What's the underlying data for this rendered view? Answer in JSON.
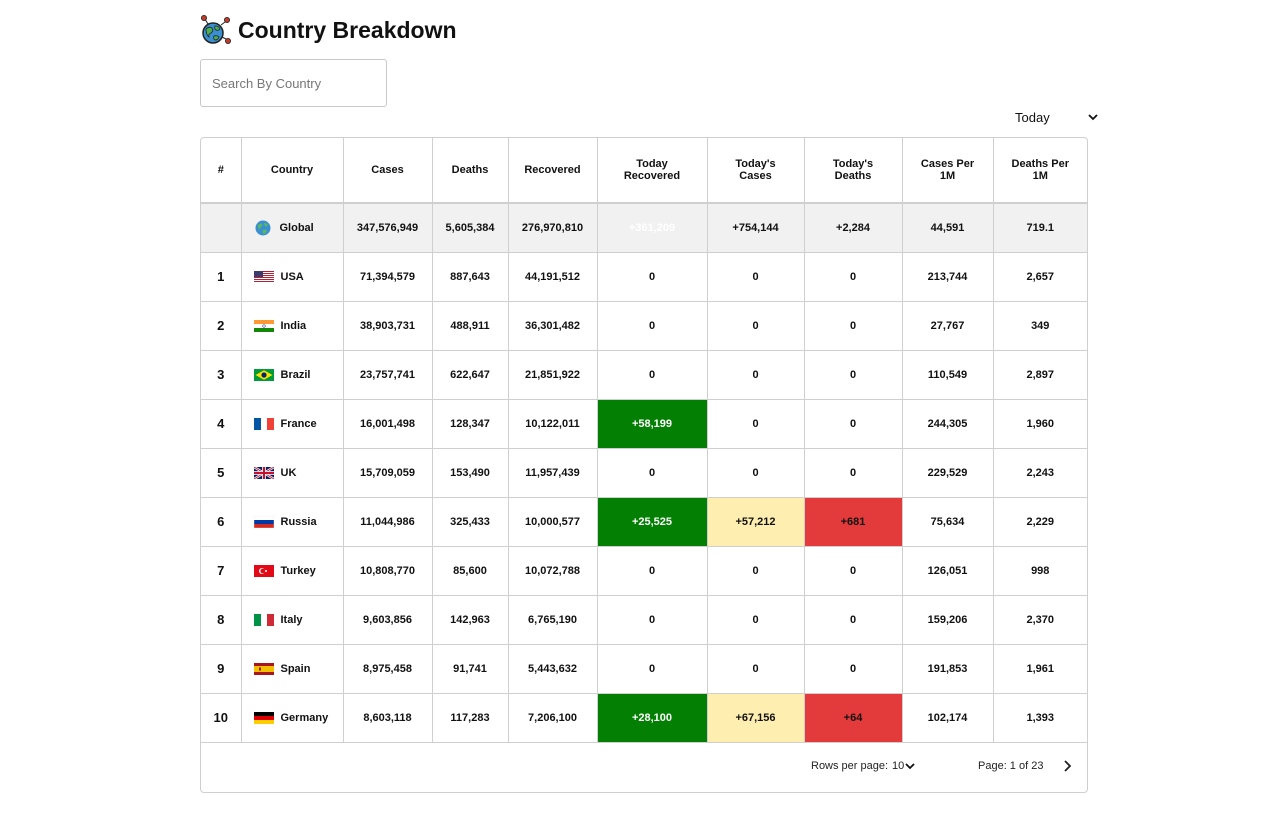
{
  "page": {
    "title": "Country Breakdown",
    "logo_icon": "globe-virus-icon"
  },
  "search": {
    "placeholder": "Search By Country",
    "value": ""
  },
  "period_select": {
    "selected": "Today"
  },
  "table": {
    "headers": {
      "rank": "#",
      "country": "Country",
      "cases": "Cases",
      "deaths": "Deaths",
      "recovered": "Recovered",
      "today_recovered": "Today Recovered",
      "today_cases": "Today's Cases",
      "today_deaths": "Today's Deaths",
      "cases_per_1m": "Cases Per 1M",
      "deaths_per_1m": "Deaths Per 1M"
    },
    "global_row": {
      "country": "Global",
      "cases": "347,576,949",
      "deaths": "5,605,384",
      "recovered": "276,970,810",
      "today_recovered": "+361,209",
      "today_cases": "+754,144",
      "today_deaths": "+2,284",
      "cases_per_1m": "44,591",
      "deaths_per_1m": "719.1"
    },
    "rows": [
      {
        "rank": "1",
        "country": "USA",
        "flag": "us-flag-icon",
        "cases": "71,394,579",
        "deaths": "887,643",
        "recovered": "44,191,512",
        "today_recovered": "0",
        "today_cases": "0",
        "today_deaths": "0",
        "cases_per_1m": "213,744",
        "deaths_per_1m": "2,657"
      },
      {
        "rank": "2",
        "country": "India",
        "flag": "india-flag-icon",
        "cases": "38,903,731",
        "deaths": "488,911",
        "recovered": "36,301,482",
        "today_recovered": "0",
        "today_cases": "0",
        "today_deaths": "0",
        "cases_per_1m": "27,767",
        "deaths_per_1m": "349"
      },
      {
        "rank": "3",
        "country": "Brazil",
        "flag": "brazil-flag-icon",
        "cases": "23,757,741",
        "deaths": "622,647",
        "recovered": "21,851,922",
        "today_recovered": "0",
        "today_cases": "0",
        "today_deaths": "0",
        "cases_per_1m": "110,549",
        "deaths_per_1m": "2,897"
      },
      {
        "rank": "4",
        "country": "France",
        "flag": "france-flag-icon",
        "cases": "16,001,498",
        "deaths": "128,347",
        "recovered": "10,122,011",
        "today_recovered": "+58,199",
        "today_cases": "0",
        "today_deaths": "0",
        "cases_per_1m": "244,305",
        "deaths_per_1m": "1,960"
      },
      {
        "rank": "5",
        "country": "UK",
        "flag": "uk-flag-icon",
        "cases": "15,709,059",
        "deaths": "153,490",
        "recovered": "11,957,439",
        "today_recovered": "0",
        "today_cases": "0",
        "today_deaths": "0",
        "cases_per_1m": "229,529",
        "deaths_per_1m": "2,243"
      },
      {
        "rank": "6",
        "country": "Russia",
        "flag": "russia-flag-icon",
        "cases": "11,044,986",
        "deaths": "325,433",
        "recovered": "10,000,577",
        "today_recovered": "+25,525",
        "today_cases": "+57,212",
        "today_deaths": "+681",
        "cases_per_1m": "75,634",
        "deaths_per_1m": "2,229"
      },
      {
        "rank": "7",
        "country": "Turkey",
        "flag": "turkey-flag-icon",
        "cases": "10,808,770",
        "deaths": "85,600",
        "recovered": "10,072,788",
        "today_recovered": "0",
        "today_cases": "0",
        "today_deaths": "0",
        "cases_per_1m": "126,051",
        "deaths_per_1m": "998"
      },
      {
        "rank": "8",
        "country": "Italy",
        "flag": "italy-flag-icon",
        "cases": "9,603,856",
        "deaths": "142,963",
        "recovered": "6,765,190",
        "today_recovered": "0",
        "today_cases": "0",
        "today_deaths": "0",
        "cases_per_1m": "159,206",
        "deaths_per_1m": "2,370"
      },
      {
        "rank": "9",
        "country": "Spain",
        "flag": "spain-flag-icon",
        "cases": "8,975,458",
        "deaths": "91,741",
        "recovered": "5,443,632",
        "today_recovered": "0",
        "today_cases": "0",
        "today_deaths": "0",
        "cases_per_1m": "191,853",
        "deaths_per_1m": "1,961"
      },
      {
        "rank": "10",
        "country": "Germany",
        "flag": "germany-flag-icon",
        "cases": "8,603,118",
        "deaths": "117,283",
        "recovered": "7,206,100",
        "today_recovered": "+28,100",
        "today_cases": "+67,156",
        "today_deaths": "+64",
        "cases_per_1m": "102,174",
        "deaths_per_1m": "1,393"
      }
    ]
  },
  "pagination": {
    "rows_per_page_label": "Rows per page:",
    "rows_per_page": "10",
    "page_info": "Page: 1 of 23"
  },
  "colors": {
    "today_recovered_highlight": "#038003",
    "today_cases_highlight": "#feeeaf",
    "today_deaths_highlight": "#e33b3b",
    "global_row_bg": "#f1f1f1"
  }
}
